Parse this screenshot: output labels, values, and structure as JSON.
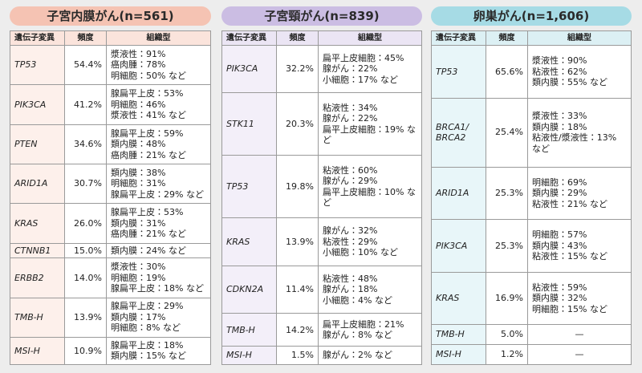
{
  "panels": [
    {
      "title": "子宮内膜がん(n=561)",
      "headers": [
        "遺伝子変異",
        "頻度",
        "組織型"
      ],
      "rows": [
        {
          "gene": "TP53",
          "freq": "54.4%",
          "types": [
            "漿液性：91%",
            "癌肉腫：78%",
            "明細胞：50% など"
          ]
        },
        {
          "gene": "PIK3CA",
          "freq": "41.2%",
          "types": [
            "腺扁平上皮：53%",
            "明細胞：46%",
            "漿液性：41% など"
          ]
        },
        {
          "gene": "PTEN",
          "freq": "34.6%",
          "types": [
            "腺扁平上皮：59%",
            "類内膜：48%",
            "癌肉腫：21% など"
          ]
        },
        {
          "gene": "ARID1A",
          "freq": "30.7%",
          "types": [
            "類内膜：38%",
            "明細胞：31%",
            "腺扁平上皮：29% など"
          ]
        },
        {
          "gene": "KRAS",
          "freq": "26.0%",
          "types": [
            "腺扁平上皮：53%",
            "類内膜：31%",
            "癌肉腫：21% など"
          ]
        },
        {
          "gene": "CTNNB1",
          "freq": "15.0%",
          "types": [
            "類内膜：24% など"
          ]
        },
        {
          "gene": "ERBB2",
          "freq": "14.0%",
          "types": [
            "漿液性：30%",
            "明細胞：19%",
            "腺扁平上皮：18% など"
          ]
        },
        {
          "gene": "TMB-H",
          "freq": "13.9%",
          "types": [
            "腺扁平上皮：29%",
            "類内膜：17%",
            "明細胞：8% など"
          ]
        },
        {
          "gene": "MSI-H",
          "freq": "10.9%",
          "types": [
            "腺扁平上皮：18%",
            "類内膜：15% など"
          ]
        }
      ]
    },
    {
      "title": "子宮頸がん(n=839)",
      "headers": [
        "遺伝子変異",
        "頻度",
        "組織型"
      ],
      "rows": [
        {
          "gene": "PIK3CA",
          "freq": "32.2%",
          "types": [
            "扁平上皮細胞：45%",
            "腺がん：22%",
            "小細胞：17% など"
          ]
        },
        {
          "gene": "STK11",
          "freq": "20.3%",
          "types": [
            "粘液性：34%",
            "腺がん：22%",
            "扁平上皮細胞：19% など"
          ]
        },
        {
          "gene": "TP53",
          "freq": "19.8%",
          "types": [
            "粘液性：60%",
            "腺がん：29%",
            "扁平上皮細胞：10% など"
          ]
        },
        {
          "gene": "KRAS",
          "freq": "13.9%",
          "types": [
            "腺がん：32%",
            "粘液性：29%",
            "小細胞：10% など"
          ]
        },
        {
          "gene": "CDKN2A",
          "freq": "11.4%",
          "types": [
            "粘液性：48%",
            "腺がん：18%",
            "小細胞：4% など"
          ]
        },
        {
          "gene": "TMB-H",
          "freq": "14.2%",
          "types": [
            "扁平上皮細胞：21%",
            "腺がん：8% など"
          ]
        },
        {
          "gene": "MSI-H",
          "freq": "1.5%",
          "types": [
            "腺がん：2% など"
          ]
        }
      ]
    },
    {
      "title": "卵巣がん(n=1,606)",
      "headers": [
        "遺伝子変異",
        "頻度",
        "組織型"
      ],
      "rows": [
        {
          "gene": "TP53",
          "freq": "65.6%",
          "types": [
            "漿液性：90%",
            "粘液性：62%",
            "類内膜：55% など"
          ]
        },
        {
          "gene": [
            "BRCA1/",
            "BRCA2"
          ],
          "freq": "25.4%",
          "types": [
            "漿液性：33%",
            "類内膜：18%",
            "粘液性/漿液性：13% など"
          ]
        },
        {
          "gene": "ARID1A",
          "freq": "25.3%",
          "types": [
            "明細胞：69%",
            "類内膜：29%",
            "粘液性：21% など"
          ]
        },
        {
          "gene": "PIK3CA",
          "freq": "25.3%",
          "types": [
            "明細胞：57%",
            "類内膜：43%",
            "粘液性：15% など"
          ]
        },
        {
          "gene": "KRAS",
          "freq": "16.9%",
          "types": [
            "粘液性：59%",
            "類内膜：32%",
            "明細胞：15% など"
          ]
        },
        {
          "gene": "TMB-H",
          "freq": "5.0%",
          "types": "—"
        },
        {
          "gene": "MSI-H",
          "freq": "1.2%",
          "types": "—"
        }
      ]
    }
  ]
}
